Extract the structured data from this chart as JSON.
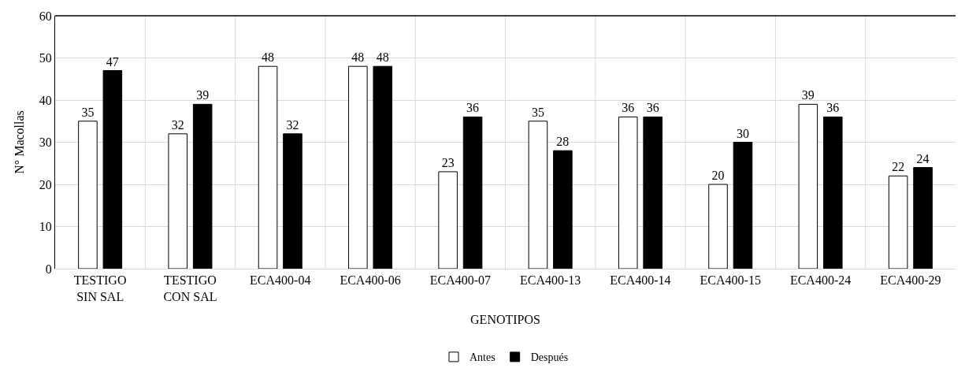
{
  "chart_data": {
    "type": "bar",
    "xlabel": "GENOTIPOS",
    "ylabel": "N° Macollas",
    "categories": [
      "TESTIGO\nSIN SAL",
      "TESTIGO\nCON SAL",
      "ECA400-04",
      "ECA400-06",
      "ECA400-07",
      "ECA400-13",
      "ECA400-14",
      "ECA400-15",
      "ECA400-24",
      "ECA400-29"
    ],
    "series": [
      {
        "name": "Antes",
        "color": "#ffffff",
        "values": [
          35,
          32,
          48,
          48,
          23,
          35,
          36,
          20,
          39,
          22
        ]
      },
      {
        "name": "Después",
        "color": "#000000",
        "values": [
          47,
          39,
          32,
          48,
          36,
          28,
          36,
          30,
          36,
          24
        ]
      }
    ],
    "ylim": [
      0,
      60
    ],
    "yticks": [
      0,
      10,
      20,
      30,
      40,
      50,
      60
    ],
    "grid": true,
    "legend": "bottom",
    "data_labels": true
  }
}
